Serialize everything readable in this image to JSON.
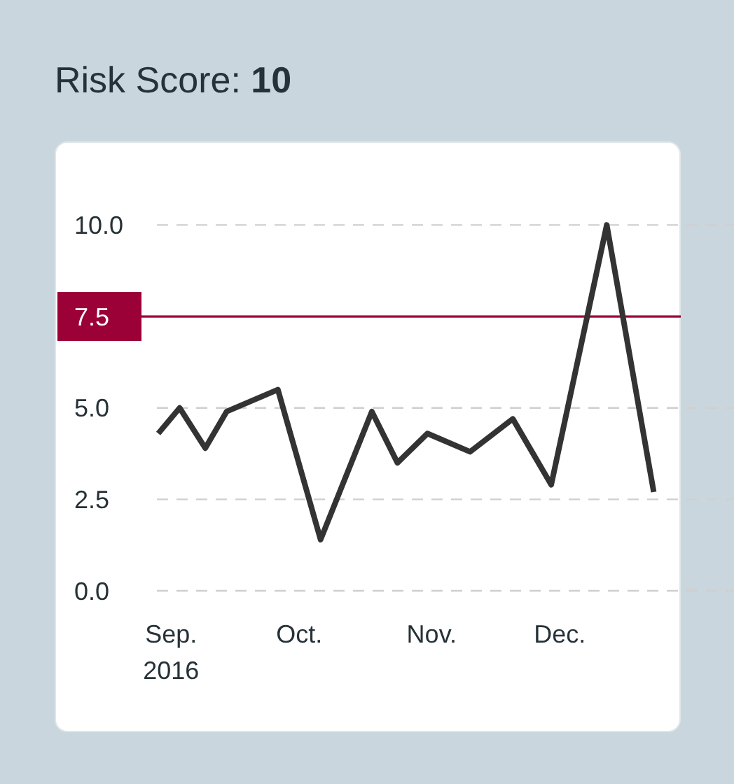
{
  "chart_data": {
    "type": "line",
    "title": "Risk Score: 10",
    "x": [
      "2016-08-29",
      "2016-09-03",
      "2016-09-09",
      "2016-09-14",
      "2016-09-26",
      "2016-10-06",
      "2016-10-18",
      "2016-10-24",
      "2016-10-31",
      "2016-11-10",
      "2016-11-20",
      "2016-11-29",
      "2016-12-12",
      "2016-12-23"
    ],
    "series": [
      {
        "color": "#333333",
        "values": [
          4.3,
          5.0,
          3.9,
          4.9,
          5.5,
          1.4,
          4.9,
          3.5,
          4.3,
          3.8,
          4.7,
          2.9,
          10.0,
          2.7
        ]
      }
    ],
    "xlim": [
      "2016-08-29",
      "2016-12-29"
    ],
    "xticks": [
      {
        "value": "2016-09-01",
        "label": "Sep.\n2016"
      },
      {
        "value": "2016-10-01",
        "label": "Oct."
      },
      {
        "value": "2016-11-01",
        "label": "Nov."
      },
      {
        "value": "2016-12-01",
        "label": "Dec."
      }
    ],
    "ylim": [
      0,
      10
    ],
    "yticks": [
      {
        "value": 0,
        "label": "0.0"
      },
      {
        "value": 2.5,
        "label": "2.5"
      },
      {
        "value": 5,
        "label": "5.0"
      },
      {
        "value": 10,
        "label": "10.0"
      }
    ],
    "ref_lines": [
      {
        "axis": "y",
        "value": 7.5,
        "label": "7.5",
        "color": "#9b0037"
      }
    ],
    "grid": "y"
  }
}
